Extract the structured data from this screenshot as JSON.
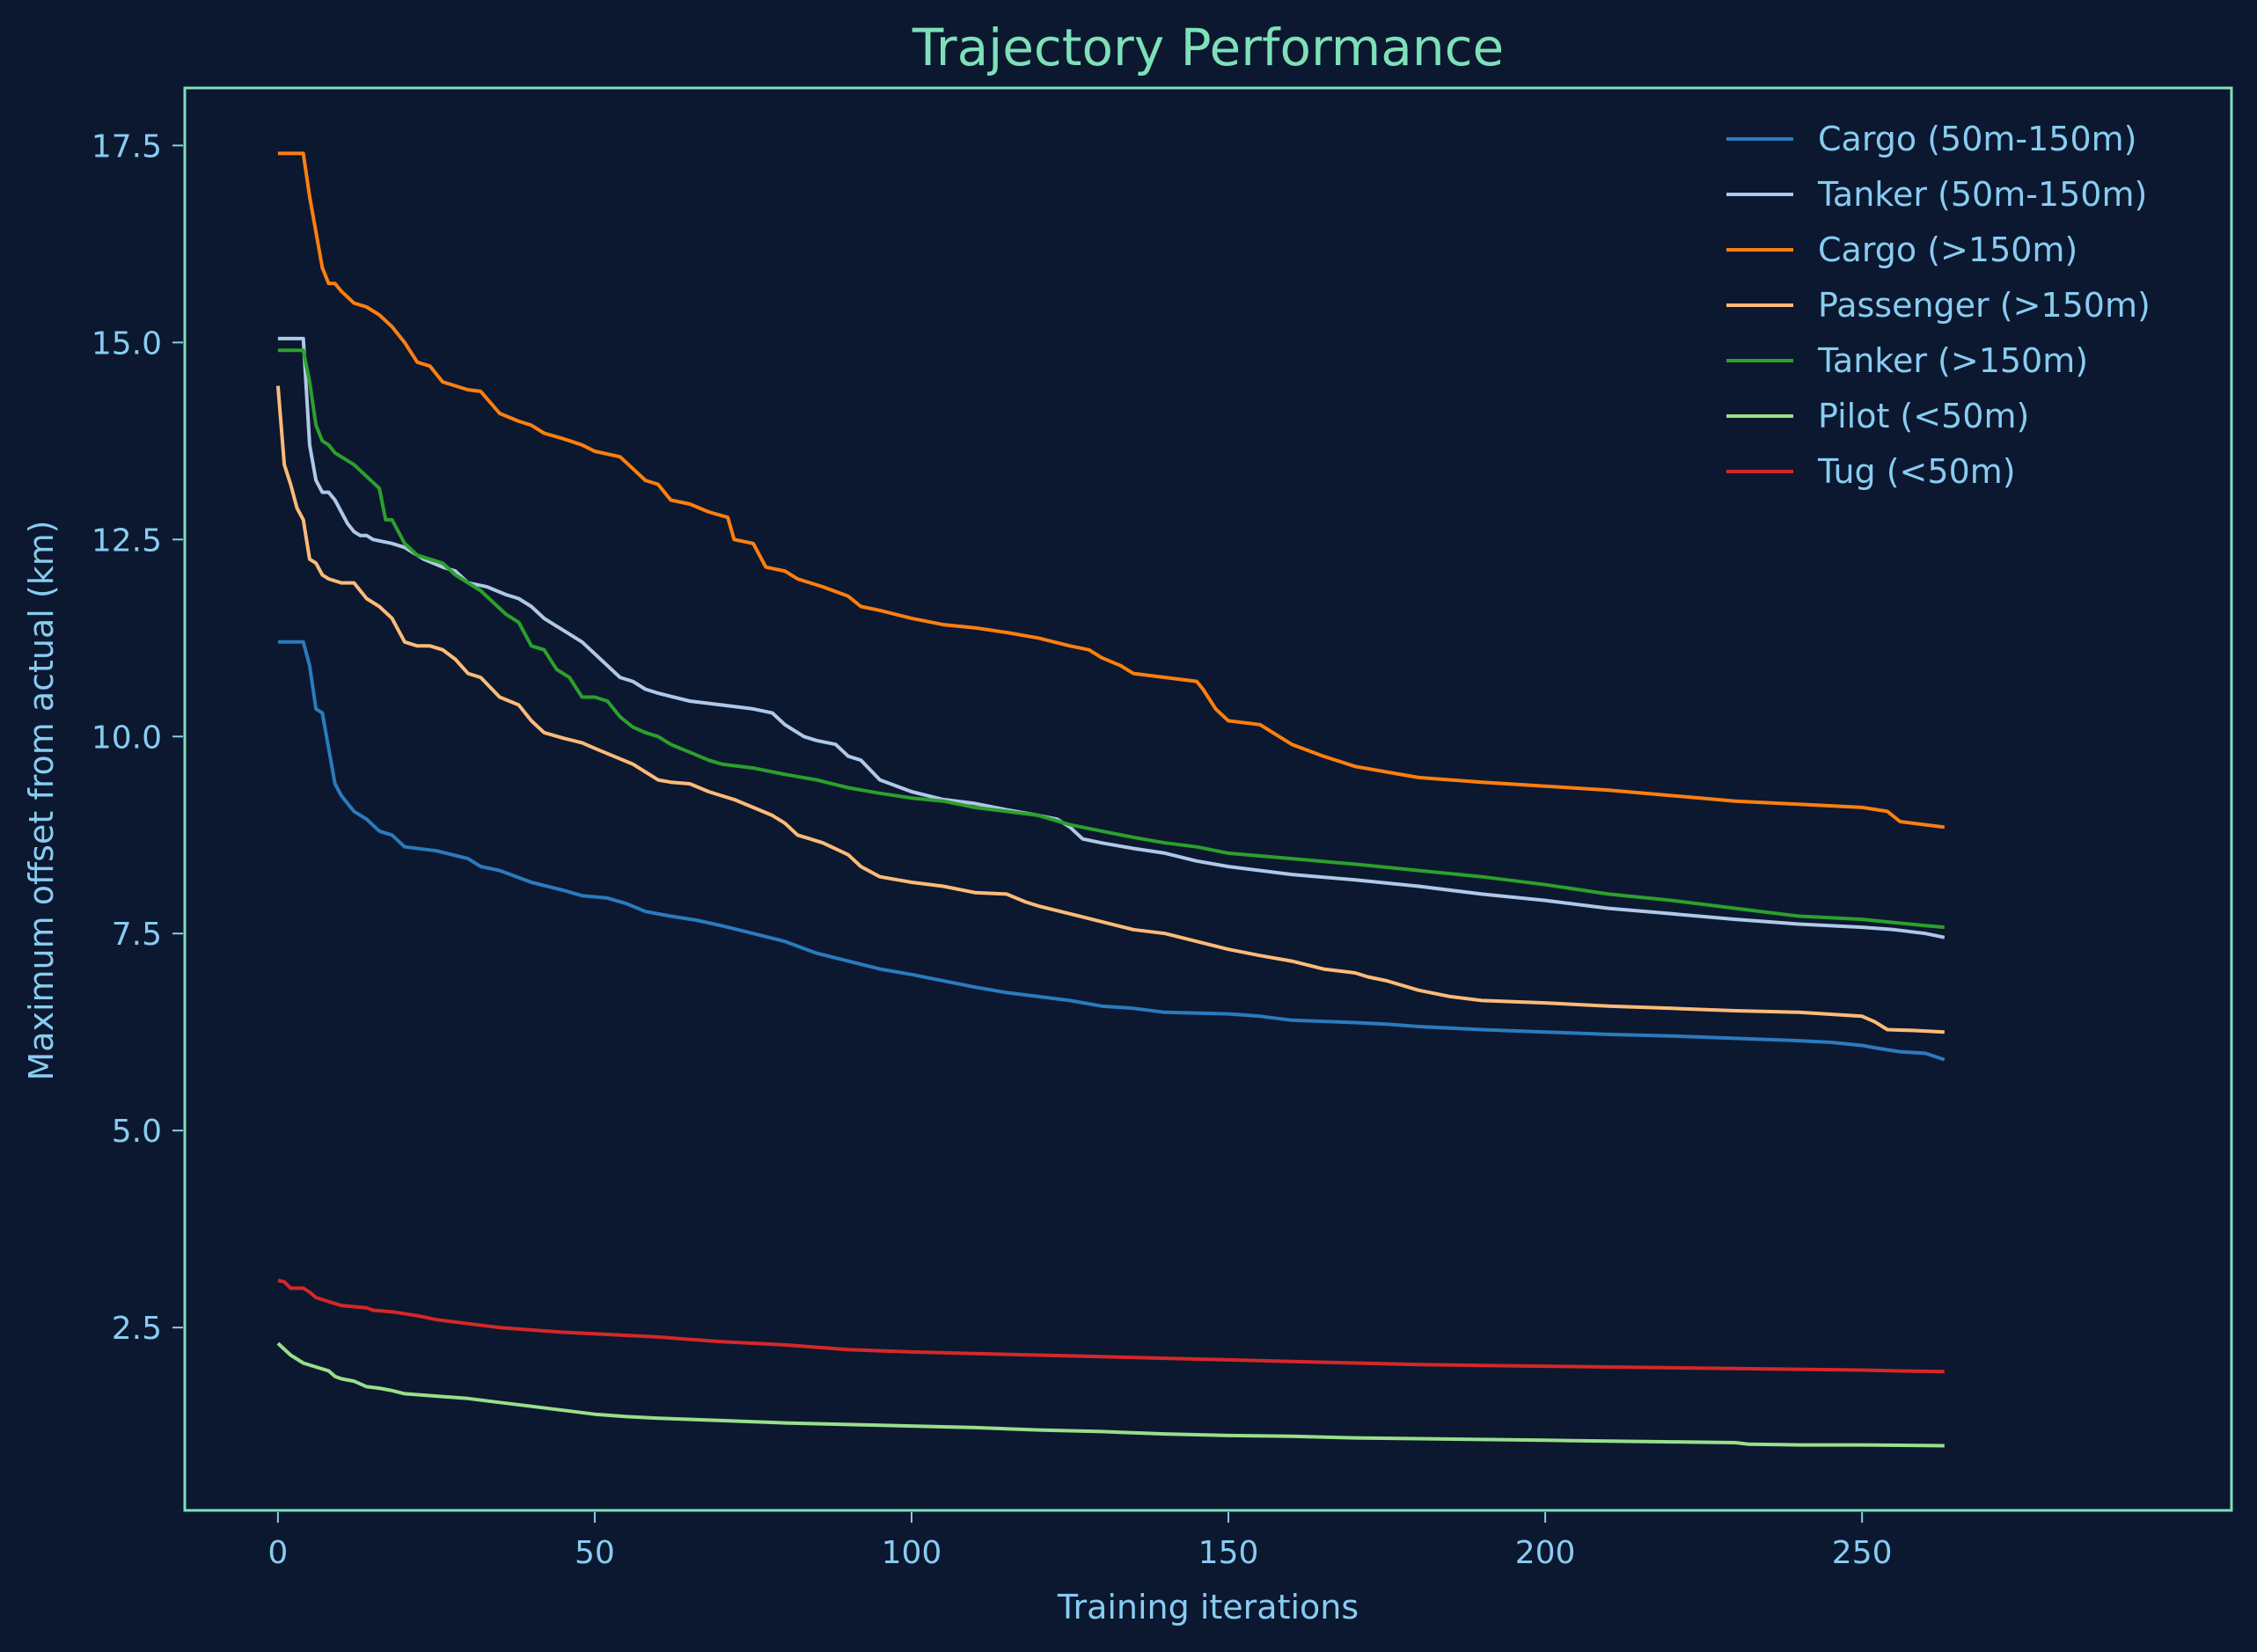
{
  "chart_data": {
    "type": "line",
    "title": "Trajectory Performance",
    "xlabel": "Training iterations",
    "ylabel": "Maximum offset from actual (km)",
    "xlim": [
      -14.7,
      308.3
    ],
    "ylim": [
      0.18,
      18.23
    ],
    "xticks": [
      0,
      50,
      100,
      150,
      200,
      250
    ],
    "xtick_labels": [
      "0",
      "50",
      "100",
      "150",
      "200",
      "250"
    ],
    "yticks": [
      2.5,
      5.0,
      7.5,
      10.0,
      12.5,
      15.0,
      17.5
    ],
    "ytick_labels": [
      "2.5",
      "5.0",
      "7.5",
      "10.0",
      "12.5",
      "15.0",
      "17.5"
    ],
    "grid": false,
    "legend_position": "top-right",
    "colors": {
      "background": "#0b1830",
      "axes_frame": "#7ee0b8",
      "title": "#7ee0b8",
      "tick_text": "#88ccf1"
    },
    "series": [
      {
        "name": "Cargo (50m-150m)",
        "color": "#2a7bbd",
        "x": [
          0,
          4,
          5,
          6,
          7,
          8,
          9,
          10,
          12,
          14,
          16,
          18,
          20,
          25,
          30,
          32,
          35,
          40,
          45,
          48,
          52,
          55,
          58,
          62,
          66,
          70,
          75,
          80,
          85,
          90,
          95,
          100,
          105,
          110,
          115,
          120,
          125,
          130,
          135,
          140,
          150,
          155,
          160,
          170,
          175,
          180,
          190,
          200,
          210,
          220,
          230,
          240,
          245,
          250,
          252,
          256,
          260,
          263
        ],
        "y": [
          11.2,
          11.2,
          10.9,
          10.35,
          10.3,
          9.85,
          9.4,
          9.25,
          9.05,
          8.95,
          8.8,
          8.75,
          8.6,
          8.55,
          8.45,
          8.35,
          8.3,
          8.15,
          8.05,
          7.98,
          7.95,
          7.88,
          7.78,
          7.72,
          7.67,
          7.6,
          7.5,
          7.4,
          7.25,
          7.15,
          7.05,
          6.98,
          6.9,
          6.82,
          6.75,
          6.7,
          6.65,
          6.58,
          6.55,
          6.5,
          6.48,
          6.45,
          6.4,
          6.37,
          6.35,
          6.32,
          6.28,
          6.25,
          6.22,
          6.2,
          6.17,
          6.14,
          6.12,
          6.08,
          6.05,
          6.0,
          5.98,
          5.9
        ]
      },
      {
        "name": "Tanker (50m-150m)",
        "color": "#b0c8e8",
        "x": [
          0,
          4,
          5,
          6,
          7,
          8,
          9,
          10,
          11,
          12,
          13,
          14,
          15,
          18,
          20,
          23,
          26,
          28,
          30,
          33,
          36,
          38,
          40,
          42,
          44,
          46,
          48,
          50,
          52,
          54,
          56,
          58,
          60,
          65,
          70,
          75,
          78,
          80,
          83,
          85,
          88,
          90,
          92,
          95,
          100,
          105,
          110,
          115,
          120,
          123,
          125,
          127,
          130,
          135,
          140,
          145,
          150,
          160,
          170,
          180,
          190,
          200,
          210,
          220,
          230,
          240,
          250,
          255,
          260,
          263
        ],
        "y": [
          15.05,
          15.05,
          13.7,
          13.25,
          13.1,
          13.1,
          13.0,
          12.85,
          12.7,
          12.6,
          12.55,
          12.55,
          12.5,
          12.45,
          12.4,
          12.25,
          12.15,
          12.1,
          11.95,
          11.9,
          11.8,
          11.75,
          11.65,
          11.5,
          11.4,
          11.3,
          11.2,
          11.05,
          10.9,
          10.75,
          10.7,
          10.6,
          10.55,
          10.45,
          10.4,
          10.35,
          10.3,
          10.15,
          10.0,
          9.95,
          9.9,
          9.75,
          9.7,
          9.45,
          9.3,
          9.2,
          9.15,
          9.07,
          9.0,
          8.95,
          8.85,
          8.7,
          8.65,
          8.58,
          8.52,
          8.42,
          8.35,
          8.25,
          8.18,
          8.1,
          8.0,
          7.92,
          7.82,
          7.75,
          7.68,
          7.62,
          7.58,
          7.55,
          7.5,
          7.45
        ]
      },
      {
        "name": "Cargo (>150m)",
        "color": "#ff7f0e",
        "x": [
          0,
          4,
          5,
          6,
          7,
          8,
          9,
          10,
          12,
          14,
          16,
          18,
          20,
          22,
          24,
          26,
          30,
          32,
          35,
          38,
          40,
          42,
          45,
          48,
          50,
          54,
          56,
          58,
          60,
          62,
          65,
          68,
          71,
          72,
          75,
          77,
          80,
          82,
          86,
          90,
          92,
          95,
          100,
          105,
          110,
          115,
          120,
          125,
          128,
          130,
          133,
          135,
          140,
          145,
          146,
          148,
          150,
          155,
          157,
          160,
          165,
          170,
          175,
          180,
          190,
          200,
          210,
          220,
          230,
          240,
          250,
          254,
          256,
          260,
          263
        ],
        "y": [
          17.4,
          17.4,
          16.85,
          16.4,
          15.95,
          15.75,
          15.75,
          15.65,
          15.5,
          15.45,
          15.35,
          15.2,
          15.0,
          14.75,
          14.7,
          14.5,
          14.4,
          14.38,
          14.1,
          14.0,
          13.95,
          13.85,
          13.78,
          13.7,
          13.62,
          13.55,
          13.4,
          13.25,
          13.2,
          13.0,
          12.95,
          12.85,
          12.78,
          12.5,
          12.45,
          12.15,
          12.1,
          12.0,
          11.9,
          11.78,
          11.65,
          11.6,
          11.5,
          11.42,
          11.38,
          11.32,
          11.25,
          11.15,
          11.1,
          11.0,
          10.9,
          10.8,
          10.75,
          10.7,
          10.6,
          10.35,
          10.2,
          10.15,
          10.05,
          9.9,
          9.75,
          9.62,
          9.55,
          9.48,
          9.42,
          9.37,
          9.32,
          9.25,
          9.18,
          9.14,
          9.1,
          9.05,
          8.92,
          8.88,
          8.85
        ]
      },
      {
        "name": "Passenger (>150m)",
        "color": "#ffbb78",
        "x": [
          0,
          1,
          2,
          3,
          4,
          5,
          6,
          7,
          8,
          10,
          12,
          14,
          16,
          18,
          20,
          22,
          24,
          26,
          28,
          30,
          32,
          35,
          38,
          40,
          42,
          45,
          48,
          50,
          53,
          56,
          58,
          60,
          62,
          65,
          68,
          70,
          72,
          75,
          78,
          80,
          82,
          84,
          86,
          90,
          92,
          95,
          100,
          105,
          110,
          115,
          118,
          120,
          125,
          130,
          135,
          140,
          145,
          150,
          155,
          160,
          165,
          170,
          172,
          175,
          180,
          185,
          190,
          200,
          210,
          220,
          230,
          240,
          250,
          252,
          254,
          258,
          263
        ],
        "y": [
          14.45,
          13.45,
          13.2,
          12.9,
          12.75,
          12.25,
          12.2,
          12.05,
          12.0,
          11.95,
          11.95,
          11.75,
          11.65,
          11.5,
          11.2,
          11.15,
          11.15,
          11.1,
          10.98,
          10.8,
          10.75,
          10.5,
          10.4,
          10.2,
          10.05,
          9.98,
          9.92,
          9.85,
          9.75,
          9.65,
          9.55,
          9.45,
          9.42,
          9.4,
          9.3,
          9.25,
          9.2,
          9.1,
          9.0,
          8.9,
          8.75,
          8.7,
          8.65,
          8.5,
          8.35,
          8.22,
          8.15,
          8.1,
          8.02,
          8.0,
          7.9,
          7.85,
          7.75,
          7.65,
          7.55,
          7.5,
          7.4,
          7.3,
          7.22,
          7.15,
          7.05,
          7.0,
          6.95,
          6.9,
          6.78,
          6.7,
          6.65,
          6.62,
          6.58,
          6.55,
          6.52,
          6.5,
          6.45,
          6.38,
          6.28,
          6.27,
          6.25
        ]
      },
      {
        "name": "Tanker (>150m)",
        "color": "#2ca02c",
        "x": [
          0,
          4,
          5,
          6,
          7,
          8,
          9,
          10,
          12,
          14,
          16,
          17,
          18,
          20,
          22,
          24,
          26,
          28,
          30,
          32,
          34,
          36,
          38,
          40,
          42,
          44,
          46,
          48,
          50,
          52,
          54,
          56,
          58,
          60,
          62,
          65,
          68,
          70,
          75,
          80,
          85,
          90,
          95,
          100,
          105,
          110,
          115,
          120,
          125,
          130,
          135,
          140,
          145,
          150,
          160,
          170,
          180,
          190,
          200,
          210,
          220,
          230,
          240,
          250,
          255,
          260,
          263
        ],
        "y": [
          14.9,
          14.9,
          14.5,
          13.95,
          13.75,
          13.7,
          13.6,
          13.55,
          13.45,
          13.3,
          13.15,
          12.75,
          12.75,
          12.45,
          12.3,
          12.25,
          12.2,
          12.05,
          11.95,
          11.85,
          11.7,
          11.55,
          11.45,
          11.15,
          11.1,
          10.85,
          10.75,
          10.5,
          10.5,
          10.45,
          10.25,
          10.12,
          10.05,
          10.0,
          9.9,
          9.8,
          9.7,
          9.65,
          9.6,
          9.52,
          9.45,
          9.35,
          9.28,
          9.22,
          9.18,
          9.1,
          9.05,
          9.0,
          8.88,
          8.8,
          8.72,
          8.65,
          8.6,
          8.52,
          8.45,
          8.38,
          8.3,
          8.22,
          8.12,
          8.0,
          7.92,
          7.82,
          7.72,
          7.68,
          7.64,
          7.6,
          7.58
        ]
      },
      {
        "name": "Pilot (<50m)",
        "color": "#98df8a",
        "x": [
          0,
          2,
          4,
          6,
          8,
          9,
          10,
          12,
          14,
          16,
          18,
          20,
          25,
          30,
          35,
          40,
          45,
          50,
          55,
          60,
          70,
          80,
          90,
          100,
          110,
          120,
          130,
          140,
          150,
          160,
          170,
          180,
          190,
          200,
          210,
          220,
          230,
          232,
          240,
          250,
          263
        ],
        "y": [
          2.3,
          2.15,
          2.05,
          2.0,
          1.95,
          1.88,
          1.85,
          1.82,
          1.75,
          1.73,
          1.7,
          1.66,
          1.63,
          1.6,
          1.55,
          1.5,
          1.45,
          1.4,
          1.37,
          1.35,
          1.32,
          1.29,
          1.27,
          1.25,
          1.23,
          1.2,
          1.18,
          1.15,
          1.13,
          1.12,
          1.1,
          1.09,
          1.08,
          1.07,
          1.06,
          1.05,
          1.04,
          1.02,
          1.01,
          1.01,
          1.0
        ]
      },
      {
        "name": "Tug (<50m)",
        "color": "#d62728",
        "x": [
          0,
          1,
          2,
          4,
          5,
          6,
          8,
          10,
          14,
          15,
          18,
          22,
          25,
          30,
          35,
          40,
          45,
          50,
          60,
          70,
          80,
          90,
          100,
          110,
          120,
          130,
          140,
          150,
          160,
          170,
          180,
          190,
          200,
          210,
          220,
          230,
          240,
          250,
          255,
          263
        ],
        "y": [
          3.1,
          3.08,
          3.0,
          3.0,
          2.95,
          2.88,
          2.83,
          2.78,
          2.75,
          2.72,
          2.7,
          2.65,
          2.6,
          2.55,
          2.5,
          2.47,
          2.44,
          2.42,
          2.38,
          2.32,
          2.28,
          2.22,
          2.19,
          2.17,
          2.15,
          2.13,
          2.11,
          2.09,
          2.07,
          2.05,
          2.03,
          2.02,
          2.01,
          2.0,
          1.99,
          1.98,
          1.97,
          1.96,
          1.95,
          1.94
        ]
      }
    ]
  }
}
